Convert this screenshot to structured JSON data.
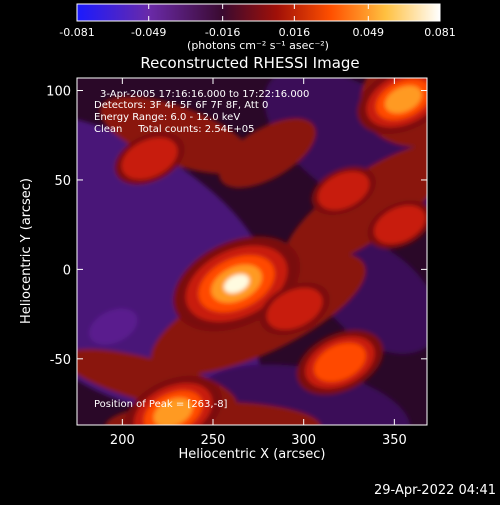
{
  "chart_data": {
    "type": "heatmap",
    "title": "Reconstructed RHESSI Image",
    "xlabel": "Heliocentric X (arcsec)",
    "ylabel": "Heliocentric Y (arcsec)",
    "xlim": [
      175,
      368
    ],
    "ylim": [
      -87,
      107
    ],
    "x_ticks": [
      200,
      250,
      300,
      350
    ],
    "y_ticks": [
      -50,
      0,
      50,
      100
    ],
    "colorbar": {
      "range": [
        -0.081,
        0.081
      ],
      "ticks": [
        -0.081,
        -0.049,
        -0.016,
        0.016,
        0.049,
        0.081
      ],
      "tick_labels": [
        "-0.081",
        "-0.049",
        "-0.016",
        "0.016",
        "0.049",
        "0.081"
      ],
      "units": "(photons cm⁻² s⁻¹ asec⁻²)",
      "colors": [
        "#1a1aff",
        "#6a2aa8",
        "#3a0a30",
        "#a01008",
        "#ff5000",
        "#ffc040",
        "#ffffff"
      ]
    },
    "annotations": {
      "time_range": "3-Apr-2005 17:16:16.000 to 17:22:16.000",
      "detectors": "Detectors: 3F 4F 5F 6F 7F 8F, Att 0",
      "energy": "Energy Range: 6.0 - 12.0 keV",
      "clean": "Clean     Total counts: 2.54E+05",
      "peak": "Position of Peak = [263,-8]"
    },
    "features": [
      {
        "x": 263,
        "y": -8,
        "value": 0.081
      },
      {
        "x": 320,
        "y": -52,
        "value": 0.045
      },
      {
        "x": 295,
        "y": -22,
        "value": 0.03
      },
      {
        "x": 215,
        "y": 62,
        "value": 0.03
      },
      {
        "x": 322,
        "y": 44,
        "value": 0.025
      },
      {
        "x": 353,
        "y": 25,
        "value": 0.025
      },
      {
        "x": 355,
        "y": 95,
        "value": 0.05
      },
      {
        "x": 228,
        "y": -80,
        "value": 0.055
      },
      {
        "x": 195,
        "y": -32,
        "value": -0.02
      }
    ]
  },
  "footer": {
    "date": "29-Apr-2022 04:41"
  }
}
